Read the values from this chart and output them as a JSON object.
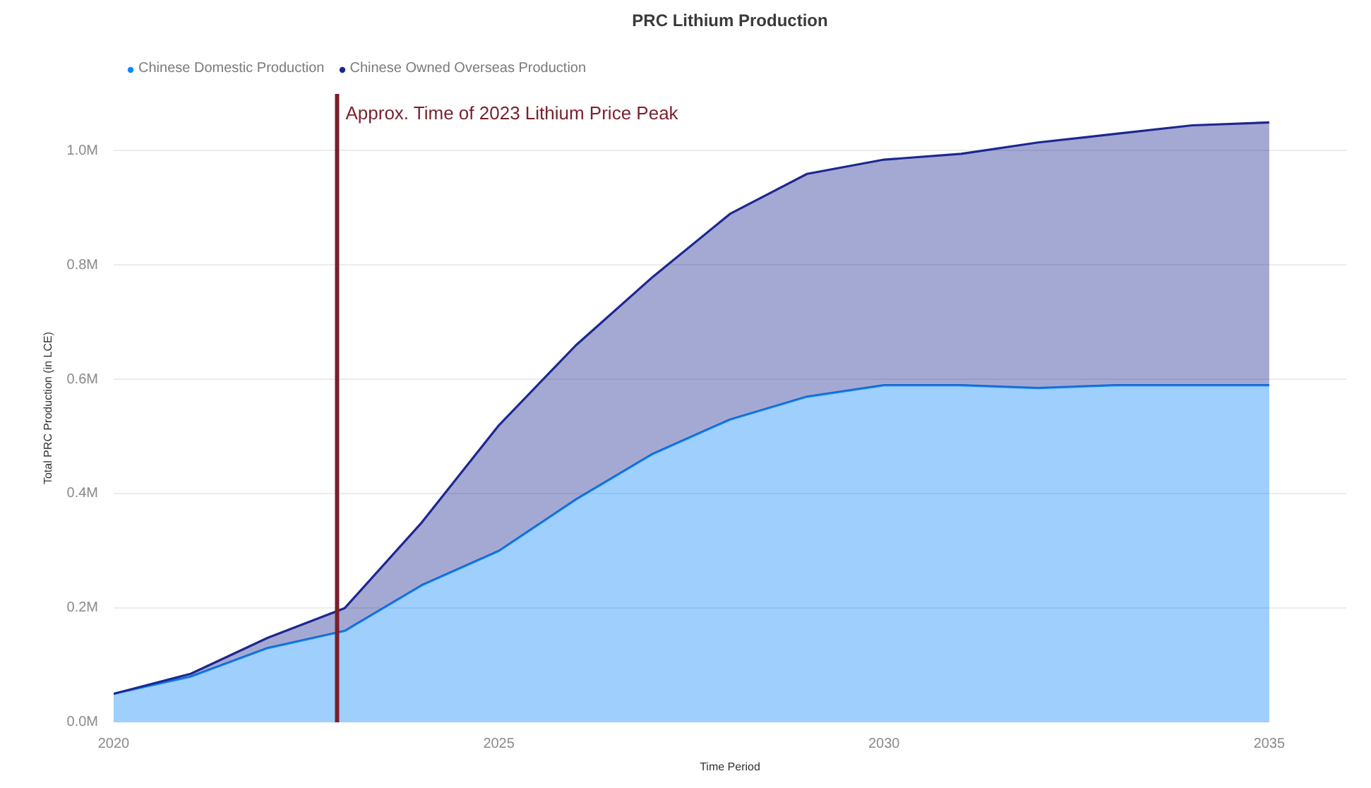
{
  "chart_data": {
    "type": "area",
    "title": "PRC Lithium Production",
    "xlabel": "Time Period",
    "ylabel": "Total PRC Production (in LCE)",
    "x": [
      2020,
      2021,
      2022,
      2023,
      2024,
      2025,
      2026,
      2027,
      2028,
      2029,
      2030,
      2031,
      2032,
      2033,
      2034,
      2035
    ],
    "stacked": true,
    "series": [
      {
        "name": "Chinese Domestic Production",
        "color": "#1088f8",
        "values": [
          50000,
          80000,
          130000,
          160000,
          240000,
          300000,
          390000,
          470000,
          530000,
          570000,
          590000,
          590000,
          585000,
          590000,
          590000,
          590000
        ]
      },
      {
        "name": "Chinese Owned Overseas Production",
        "color": "#1c2790",
        "values": [
          0,
          5000,
          18000,
          40000,
          110000,
          220000,
          270000,
          310000,
          360000,
          390000,
          395000,
          405000,
          430000,
          440000,
          455000,
          460000
        ]
      }
    ],
    "xlim": [
      2020,
      2036
    ],
    "xticks": [
      2020,
      2025,
      2030,
      2035
    ],
    "ylim": [
      0,
      1100000
    ],
    "yticks": [
      {
        "value": 0,
        "label": "0.0M"
      },
      {
        "value": 200000,
        "label": "0.2M"
      },
      {
        "value": 400000,
        "label": "0.4M"
      },
      {
        "value": 600000,
        "label": "0.6M"
      },
      {
        "value": 800000,
        "label": "0.8M"
      },
      {
        "value": 1000000,
        "label": "1.0M"
      }
    ],
    "ref_lines": [
      {
        "axis": "x",
        "value": 2022.9,
        "label": "Approx. Time of 2023 Lithium Price Peak",
        "color": "#7a1f2b"
      }
    ],
    "grid": "y",
    "legend": "top left"
  }
}
